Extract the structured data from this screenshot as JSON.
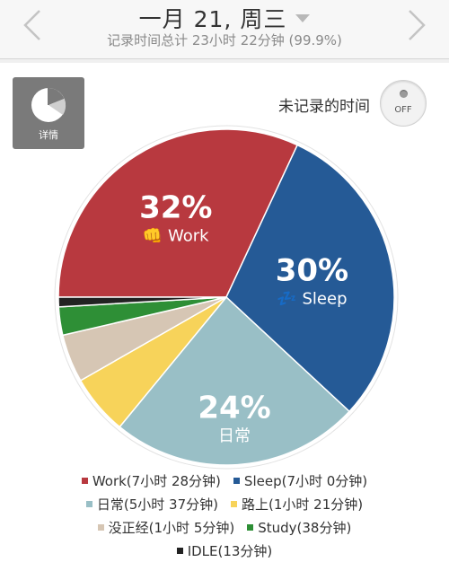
{
  "header": {
    "date": "一月 21, 周三",
    "summary": "记录时间总计 23小时 22分钟 (99.9%)"
  },
  "controls": {
    "detail_label": "详情",
    "unrecorded_label": "未记录的时间",
    "toggle_state": "OFF"
  },
  "chart_data": {
    "type": "pie",
    "slices": [
      {
        "name": "Work",
        "emoji": "👊",
        "duration": "7小时 28分钟",
        "minutes": 448,
        "percent_label": "32%",
        "color": "#b8393f"
      },
      {
        "name": "Sleep",
        "emoji": "💤",
        "duration": "7小时 0分钟",
        "minutes": 420,
        "percent_label": "30%",
        "color": "#255a96"
      },
      {
        "name": "日常",
        "emoji": "",
        "duration": "5小时 37分钟",
        "minutes": 337,
        "percent_label": "24%",
        "color": "#99bfc6"
      },
      {
        "name": "路上",
        "emoji": "",
        "duration": "1小时 21分钟",
        "minutes": 81,
        "percent_label": "",
        "color": "#f7d35a"
      },
      {
        "name": "没正经",
        "emoji": "",
        "duration": "1小时 5分钟",
        "minutes": 65,
        "percent_label": "",
        "color": "#d6c6b4"
      },
      {
        "name": "Study",
        "emoji": "♻️",
        "duration": "38分钟",
        "minutes": 38,
        "percent_label": "",
        "color": "#2e8f36"
      },
      {
        "name": "IDLE",
        "emoji": "☃",
        "duration": "13分钟",
        "minutes": 13,
        "percent_label": "",
        "color": "#222222"
      }
    ],
    "slice_labels": [
      {
        "percent": "30%",
        "name": "Sleep",
        "emoji": "💤"
      },
      {
        "percent": "24%",
        "name": "日常",
        "emoji": ""
      },
      {
        "percent": "32%",
        "name": "Work",
        "emoji": "👊"
      }
    ],
    "legend": [
      "Work(7小时 28分钟)",
      "Sleep(7小时 0分钟)",
      "日常(5小时 37分钟)",
      "路上(1小时 21分钟)",
      "没正经(1小时 5分钟)",
      "Study(38分钟)",
      "IDLE(13分钟)"
    ],
    "start_angle_deg": 180,
    "direction": "clockwise"
  },
  "colors": {
    "work": "#b8393f",
    "sleep": "#255a96",
    "daily": "#99bfc6",
    "commute": "#f7d35a",
    "slack": "#d6c6b4",
    "study": "#2e8f36",
    "idle": "#222222"
  }
}
